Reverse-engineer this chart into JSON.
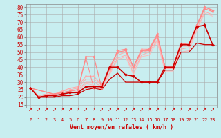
{
  "bg_color": "#c8eef0",
  "grid_color": "#aaaaaa",
  "xlabel": "Vent moyen/en rafales ( km/h )",
  "xlabel_color": "#cc0000",
  "ylabel_ticks": [
    15,
    20,
    25,
    30,
    35,
    40,
    45,
    50,
    55,
    60,
    65,
    70,
    75,
    80
  ],
  "xlim": [
    -0.5,
    23.5
  ],
  "ylim": [
    13,
    82
  ],
  "xticks": [
    0,
    1,
    2,
    3,
    4,
    5,
    6,
    7,
    8,
    9,
    10,
    11,
    12,
    13,
    14,
    15,
    16,
    17,
    18,
    19,
    20,
    21,
    22,
    23
  ],
  "series": [
    {
      "x": [
        0,
        1,
        2,
        3,
        4,
        5,
        6,
        7,
        8,
        9,
        10,
        11,
        12,
        13,
        14,
        15,
        16,
        17,
        18,
        19,
        20,
        21,
        22,
        23
      ],
      "y": [
        26,
        21,
        22,
        22,
        24,
        26,
        27,
        34,
        34,
        28,
        40,
        50,
        51,
        40,
        52,
        52,
        61,
        40,
        40,
        56,
        55,
        68,
        80,
        78
      ],
      "color": "#ffaaaa",
      "lw": 0.8,
      "marker": "D",
      "ms": 1.5
    },
    {
      "x": [
        0,
        1,
        2,
        3,
        4,
        5,
        6,
        7,
        8,
        9,
        10,
        11,
        12,
        13,
        14,
        15,
        16,
        17,
        18,
        19,
        20,
        21,
        22,
        23
      ],
      "y": [
        26,
        21,
        22,
        22,
        24,
        25,
        26,
        32,
        32,
        28,
        38,
        48,
        50,
        38,
        50,
        51,
        60,
        39,
        39,
        54,
        54,
        67,
        79,
        77
      ],
      "color": "#ffaaaa",
      "lw": 0.7,
      "marker": null,
      "ms": 0
    },
    {
      "x": [
        0,
        1,
        2,
        3,
        4,
        5,
        6,
        7,
        8,
        9,
        10,
        11,
        12,
        13,
        14,
        15,
        16,
        17,
        18,
        19,
        20,
        21,
        22,
        23
      ],
      "y": [
        26,
        21,
        22,
        22,
        23,
        24,
        25,
        30,
        30,
        27,
        36,
        46,
        48,
        36,
        48,
        50,
        58,
        38,
        38,
        52,
        53,
        65,
        77,
        75
      ],
      "color": "#ffaaaa",
      "lw": 0.7,
      "marker": null,
      "ms": 0
    },
    {
      "x": [
        0,
        3,
        4,
        5,
        6,
        7,
        8,
        9,
        10,
        11,
        12,
        13,
        14,
        15,
        16,
        17,
        18,
        19,
        20,
        21,
        22,
        23
      ],
      "y": [
        26,
        22,
        23,
        24,
        25,
        47,
        47,
        26,
        39,
        51,
        52,
        40,
        51,
        52,
        62,
        40,
        40,
        56,
        55,
        68,
        80,
        78
      ],
      "color": "#ff8888",
      "lw": 0.9,
      "marker": "D",
      "ms": 1.8
    },
    {
      "x": [
        0,
        1,
        2,
        3,
        4,
        5,
        6,
        7,
        8,
        9,
        10,
        11,
        12,
        13,
        14,
        15,
        16,
        17,
        18,
        19,
        20,
        21,
        22,
        23
      ],
      "y": [
        26,
        20,
        21,
        21,
        22,
        23,
        24,
        29,
        28,
        26,
        35,
        45,
        47,
        35,
        47,
        48,
        57,
        37,
        37,
        50,
        51,
        64,
        76,
        74
      ],
      "color": "#ffbbbb",
      "lw": 0.7,
      "marker": null,
      "ms": 0
    },
    {
      "x": [
        0,
        3,
        5,
        6,
        7,
        8,
        9,
        10,
        11,
        12,
        13,
        14,
        15,
        16,
        17,
        18,
        19,
        20,
        21,
        22,
        23
      ],
      "y": [
        26,
        22,
        24,
        25,
        46,
        26,
        26,
        39,
        50,
        51,
        40,
        51,
        51,
        61,
        40,
        40,
        55,
        55,
        67,
        79,
        77
      ],
      "color": "#ff8888",
      "lw": 0.7,
      "marker": "D",
      "ms": 1.5
    },
    {
      "x": [
        0,
        1,
        2,
        3,
        4,
        5,
        6,
        7,
        8,
        9,
        10,
        11,
        12,
        13,
        14,
        15,
        16,
        17,
        18,
        19,
        20,
        21,
        22,
        23
      ],
      "y": [
        26,
        20,
        21,
        21,
        22,
        23,
        23,
        27,
        27,
        27,
        40,
        40,
        35,
        34,
        30,
        30,
        30,
        40,
        40,
        55,
        55,
        67,
        68,
        55
      ],
      "color": "#cc0000",
      "lw": 1.2,
      "marker": "D",
      "ms": 2.2
    },
    {
      "x": [
        0,
        1,
        2,
        3,
        4,
        5,
        6,
        7,
        8,
        9,
        10,
        11,
        12,
        13,
        14,
        15,
        16,
        17,
        18,
        19,
        20,
        21,
        22,
        23
      ],
      "y": [
        26,
        20,
        20,
        20,
        21,
        21,
        22,
        25,
        26,
        25,
        32,
        36,
        30,
        30,
        30,
        30,
        30,
        38,
        38,
        50,
        50,
        56,
        55,
        55
      ],
      "color": "#cc0000",
      "lw": 0.9,
      "marker": null,
      "ms": 0
    }
  ],
  "wind_arrows_color": "#cc0000",
  "tick_fontsize": 5.0,
  "ylabel_fontsize": 5.5,
  "xlabel_fontsize": 6.0
}
